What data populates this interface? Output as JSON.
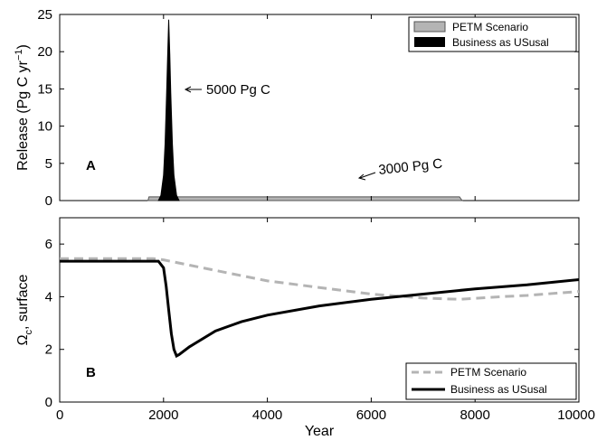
{
  "chart_data": [
    {
      "panel": "A",
      "type": "area",
      "xlim": [
        0,
        10000
      ],
      "ylim": [
        0,
        25
      ],
      "ylabel": "Release (Pg C yr",
      "ylabel_sup": "−1",
      "ylabel_close": ")",
      "yticks": [
        0,
        5,
        10,
        15,
        20,
        25
      ],
      "panel_label": "A",
      "legend": {
        "location": "top-right",
        "entries": [
          {
            "name": "PETM Scenario",
            "color": "#b4b4b4"
          },
          {
            "name": "Business as USusal",
            "color": "#000000"
          }
        ]
      },
      "series": [
        {
          "name": "PETM Scenario",
          "color": "#b4b4b4",
          "x": [
            1700,
            1720,
            7700,
            7750
          ],
          "y": [
            0,
            0.5,
            0.5,
            0
          ]
        },
        {
          "name": "Business as USusal",
          "color": "#000000",
          "x": [
            1900,
            1950,
            2000,
            2030,
            2060,
            2080,
            2100,
            2120,
            2140,
            2170,
            2200,
            2250,
            2300
          ],
          "y": [
            0,
            0.7,
            3.4,
            7.6,
            14.4,
            19.7,
            24.3,
            19.7,
            14.4,
            7.6,
            3.4,
            0.7,
            0
          ]
        }
      ],
      "annotations": [
        {
          "text": "5000 Pg C",
          "x": 2700,
          "y": 17.0
        },
        {
          "text": "3000 Pg C",
          "x": 6200,
          "y": 3.9
        }
      ]
    },
    {
      "panel": "B",
      "type": "line",
      "xlim": [
        0,
        10000
      ],
      "ylim": [
        0,
        7
      ],
      "xlabel": "Year",
      "ylabel_main": "Ω",
      "ylabel_sub": "c",
      "ylabel_rest": ", surface",
      "xticks": [
        0,
        2000,
        4000,
        6000,
        8000,
        10000
      ],
      "yticks": [
        0,
        2,
        4,
        6
      ],
      "panel_label": "B",
      "legend": {
        "location": "bottom-right",
        "entries": [
          {
            "name": "PETM Scenario",
            "color": "#b4b4b4",
            "style": "dashed"
          },
          {
            "name": "Business as USusal",
            "color": "#000000",
            "style": "solid"
          }
        ]
      },
      "series": [
        {
          "name": "PETM Scenario",
          "color": "#b4b4b4",
          "x": [
            0,
            1800,
            2000,
            2500,
            3000,
            3500,
            4000,
            5000,
            6000,
            7000,
            7700,
            8500,
            9000,
            10000
          ],
          "y": [
            5.45,
            5.45,
            5.4,
            5.2,
            5.0,
            4.8,
            4.6,
            4.35,
            4.1,
            3.95,
            3.9,
            4.0,
            4.05,
            4.2
          ]
        },
        {
          "name": "Business as USusal",
          "color": "#000000",
          "x": [
            0,
            1900,
            2000,
            2050,
            2100,
            2150,
            2200,
            2250,
            2300,
            2500,
            3000,
            3500,
            4000,
            5000,
            6000,
            7000,
            8000,
            9000,
            10000
          ],
          "y": [
            5.35,
            5.35,
            5.1,
            4.4,
            3.5,
            2.6,
            2.0,
            1.75,
            1.8,
            2.1,
            2.7,
            3.05,
            3.3,
            3.65,
            3.9,
            4.1,
            4.3,
            4.45,
            4.65
          ]
        }
      ]
    }
  ]
}
